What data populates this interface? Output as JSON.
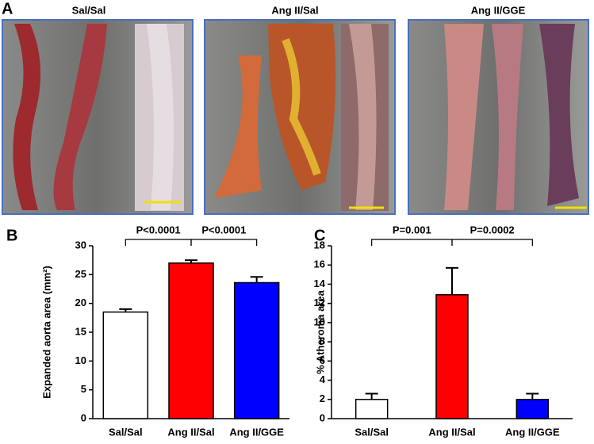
{
  "panel_a": {
    "label": "A",
    "images": [
      {
        "title": "Sal/Sal"
      },
      {
        "title": "Ang II/Sal"
      },
      {
        "title": "Ang II/GGE"
      }
    ]
  },
  "chart_data": [
    {
      "type": "bar",
      "panel_label": "B",
      "ylabel": "Expanded aorta area (mm²)",
      "categories": [
        "Sal/Sal",
        "Ang II/Sal",
        "Ang II/GGE"
      ],
      "values": [
        18.5,
        27,
        23.6
      ],
      "errors": [
        0.5,
        0.5,
        1.0
      ],
      "colors": [
        "#ffffff",
        "#ff0000",
        "#0000ff"
      ],
      "ylim": [
        0,
        30
      ],
      "yticks": [
        0,
        5,
        10,
        15,
        20,
        25,
        30
      ],
      "annotations": [
        {
          "text": "P<0.0001"
        },
        {
          "text": "P<0.0001"
        }
      ]
    },
    {
      "type": "bar",
      "panel_label": "C",
      "ylabel": "% Atheroma area",
      "categories": [
        "Sal/Sal",
        "Ang II/Sal",
        "Ang II/GGE"
      ],
      "values": [
        2.0,
        12.9,
        2.0
      ],
      "errors": [
        0.6,
        2.8,
        0.6
      ],
      "colors": [
        "#ffffff",
        "#ff0000",
        "#0000ff"
      ],
      "ylim": [
        0,
        18
      ],
      "yticks": [
        0,
        2,
        4,
        6,
        8,
        10,
        12,
        14,
        16,
        18
      ],
      "annotations": [
        {
          "text": "P=0.001"
        },
        {
          "text": "P=0.0002"
        }
      ]
    }
  ]
}
